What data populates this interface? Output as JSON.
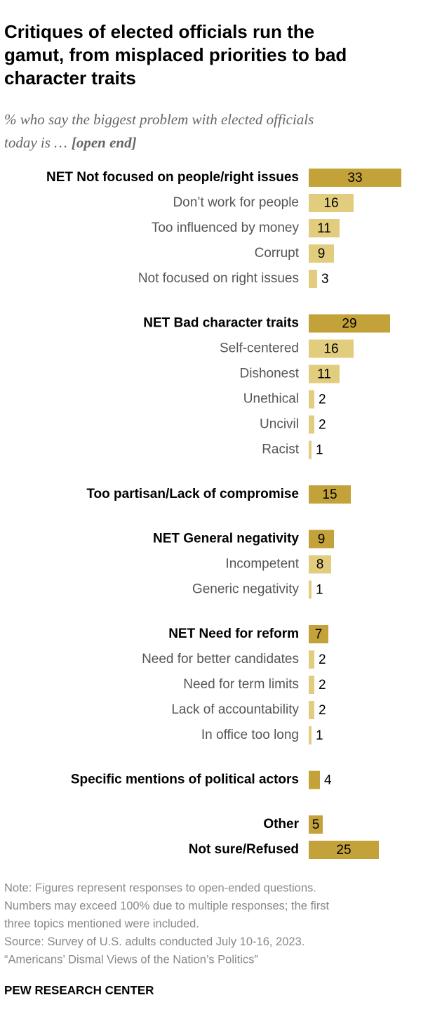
{
  "chart_data": {
    "type": "bar",
    "title": [
      "Critiques of elected officials run the",
      "gamut, from misplaced priorities to bad",
      "character traits"
    ],
    "subtitle": [
      "% who say the biggest problem with elected officials",
      "today is …"
    ],
    "subtitle_emphasis": "[open end]",
    "color": "#c4a23a",
    "sub_color": "#e2cd7f",
    "groups": [
      [
        {
          "label": "NET Not focused on people/right issues",
          "value": 33,
          "net": true
        },
        {
          "label": "Don’t work for people",
          "value": 16
        },
        {
          "label": "Too influenced by money",
          "value": 11
        },
        {
          "label": "Corrupt",
          "value": 9
        },
        {
          "label": "Not focused on right issues",
          "value": 3
        }
      ],
      [
        {
          "label": "NET Bad character traits",
          "value": 29,
          "net": true
        },
        {
          "label": "Self-centered",
          "value": 16
        },
        {
          "label": "Dishonest",
          "value": 11
        },
        {
          "label": "Unethical",
          "value": 2
        },
        {
          "label": "Uncivil",
          "value": 2
        },
        {
          "label": "Racist",
          "value": 1
        }
      ],
      [
        {
          "label": "Too partisan/Lack of compromise",
          "value": 15,
          "net": true
        }
      ],
      [
        {
          "label": "NET General negativity",
          "value": 9,
          "net": true
        },
        {
          "label": "Incompetent",
          "value": 8
        },
        {
          "label": "Generic negativity",
          "value": 1
        }
      ],
      [
        {
          "label": "NET Need for reform",
          "value": 7,
          "net": true
        },
        {
          "label": "Need for better candidates",
          "value": 2
        },
        {
          "label": "Need for term limits",
          "value": 2
        },
        {
          "label": "Lack of accountability",
          "value": 2
        },
        {
          "label": "In office too long",
          "value": 1
        }
      ],
      [
        {
          "label": "Specific mentions of political actors",
          "value": 4,
          "net": true
        }
      ],
      [
        {
          "label": "Other",
          "value": 5,
          "net": true
        },
        {
          "label": "Not sure/Refused",
          "value": 25,
          "net": true
        }
      ]
    ],
    "note": [
      "Note: Figures represent responses to open-ended questions.",
      "Numbers may exceed 100% due to multiple responses; the first",
      "three topics mentioned were included.",
      "Source: Survey of U.S. adults conducted July 10-16, 2023.",
      "“Americans’ Dismal Views of the Nation’s Politics”"
    ],
    "source_org": "PEW RESEARCH CENTER"
  }
}
